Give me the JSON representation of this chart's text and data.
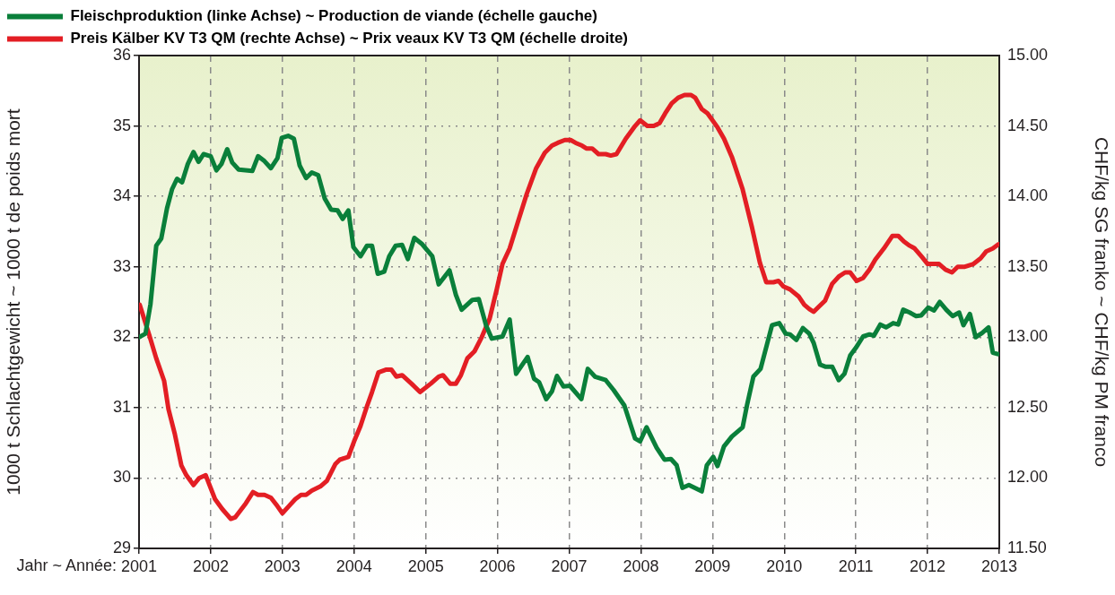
{
  "chart_data": {
    "type": "line",
    "xlabel": "Jahr ~ Année:",
    "ylabel": "1000 t Schlachtgewicht ~ 1000 t de poids mort",
    "y2label": "CHF/kg SG franko ~ CHF/kg PM franco",
    "xlim": [
      2001,
      2013
    ],
    "xticks": [
      2001,
      2002,
      2003,
      2004,
      2005,
      2006,
      2007,
      2008,
      2009,
      2010,
      2011,
      2012,
      2013
    ],
    "ylim": [
      29,
      36
    ],
    "yticks": [
      29,
      30,
      31,
      32,
      33,
      34,
      35,
      36
    ],
    "y2lim": [
      11.5,
      15
    ],
    "y2ticks": [
      {
        "value": 11.5,
        "label": "11.50"
      },
      {
        "value": 12,
        "label": "12.00"
      },
      {
        "value": 12.5,
        "label": "12.50"
      },
      {
        "value": 13,
        "label": "13.00"
      },
      {
        "value": 13.5,
        "label": "13.50"
      },
      {
        "value": 14,
        "label": "14.00"
      },
      {
        "value": 14.5,
        "label": "14.50"
      },
      {
        "value": 15,
        "label": "15.00"
      }
    ],
    "grid": true,
    "legend": "top left",
    "series": [
      {
        "name": "Fleischproduktion (linke Achse) ~ Production de viande (échelle gauche)",
        "color": "#0a7f3a",
        "axis": "y",
        "x": [
          2001.0,
          2001.09,
          2001.16,
          2001.24,
          2001.31,
          2001.39,
          2001.46,
          2001.53,
          2001.6,
          2001.68,
          2001.76,
          2001.83,
          2001.9,
          2002.0,
          2002.08,
          2002.15,
          2002.23,
          2002.3,
          2002.39,
          2002.58,
          2002.66,
          2002.75,
          2002.84,
          2002.93,
          2002.99,
          2003.08,
          2003.16,
          2003.24,
          2003.33,
          2003.41,
          2003.5,
          2003.59,
          2003.68,
          2003.77,
          2003.84,
          2003.92,
          2003.99,
          2004.09,
          2004.18,
          2004.25,
          2004.33,
          2004.42,
          2004.49,
          2004.58,
          2004.67,
          2004.75,
          2004.84,
          2004.95,
          2005.09,
          2005.18,
          2005.33,
          2005.42,
          2005.5,
          2005.65,
          2005.74,
          2005.84,
          2005.92,
          2006.07,
          2006.17,
          2006.26,
          2006.42,
          2006.51,
          2006.58,
          2006.68,
          2006.76,
          2006.83,
          2006.92,
          2007.01,
          2007.17,
          2007.26,
          2007.36,
          2007.51,
          2007.62,
          2007.77,
          2007.92,
          2007.99,
          2008.08,
          2008.22,
          2008.33,
          2008.42,
          2008.5,
          2008.58,
          2008.67,
          2008.85,
          2008.92,
          2009.01,
          2009.07,
          2009.16,
          2009.27,
          2009.42,
          2009.48,
          2009.57,
          2009.67,
          2009.83,
          2009.93,
          2010.02,
          2010.08,
          2010.17,
          2010.26,
          2010.35,
          2010.41,
          2010.5,
          2010.58,
          2010.67,
          2010.76,
          2010.84,
          2010.92,
          2011.0,
          2011.1,
          2011.19,
          2011.25,
          2011.34,
          2011.42,
          2011.52,
          2011.59,
          2011.66,
          2011.75,
          2011.84,
          2011.91,
          2012.01,
          2012.09,
          2012.17,
          2012.26,
          2012.35,
          2012.44,
          2012.5,
          2012.59,
          2012.67,
          2012.76,
          2012.85,
          2012.91,
          2012.98
        ],
        "values": [
          32.0,
          32.05,
          32.47,
          33.3,
          33.4,
          33.83,
          34.1,
          34.25,
          34.2,
          34.46,
          34.63,
          34.49,
          34.6,
          34.57,
          34.37,
          34.46,
          34.67,
          34.48,
          34.38,
          34.36,
          34.57,
          34.5,
          34.4,
          34.54,
          34.83,
          34.86,
          34.82,
          34.44,
          34.26,
          34.34,
          34.3,
          33.97,
          33.81,
          33.8,
          33.68,
          33.8,
          33.28,
          33.15,
          33.3,
          33.3,
          32.9,
          32.93,
          33.15,
          33.3,
          33.31,
          33.11,
          33.41,
          33.32,
          33.15,
          32.75,
          32.95,
          32.6,
          32.39,
          32.53,
          32.54,
          32.17,
          31.98,
          32.01,
          32.25,
          31.48,
          31.72,
          31.41,
          31.36,
          31.12,
          31.23,
          31.45,
          31.3,
          31.31,
          31.12,
          31.55,
          31.44,
          31.39,
          31.25,
          31.03,
          30.56,
          30.52,
          30.72,
          30.43,
          30.26,
          30.27,
          30.18,
          29.86,
          29.9,
          29.81,
          30.18,
          30.3,
          30.17,
          30.45,
          30.59,
          30.72,
          31.03,
          31.44,
          31.55,
          32.17,
          32.2,
          32.05,
          32.04,
          31.96,
          32.13,
          32.05,
          31.92,
          31.61,
          31.58,
          31.58,
          31.39,
          31.48,
          31.74,
          31.85,
          32.01,
          32.04,
          32.02,
          32.18,
          32.14,
          32.2,
          32.18,
          32.39,
          32.35,
          32.3,
          32.31,
          32.42,
          32.38,
          32.5,
          32.39,
          32.3,
          32.35,
          32.17,
          32.33,
          32.0,
          32.06,
          32.14,
          31.78,
          31.76
        ]
      },
      {
        "name": "Preis Kälber KV T3 QM (rechte Achse) ~ Prix veaux KV T3 QM (échelle droite)",
        "color": "#e31e24",
        "axis": "y2",
        "x": [
          2001.01,
          2001.14,
          2001.24,
          2001.35,
          2001.41,
          2001.5,
          2001.59,
          2001.66,
          2001.76,
          2001.84,
          2001.93,
          2002.06,
          2002.16,
          2002.28,
          2002.34,
          2002.49,
          2002.59,
          2002.66,
          2002.75,
          2002.84,
          2002.93,
          2003.0,
          2003.09,
          2003.18,
          2003.26,
          2003.33,
          2003.41,
          2003.53,
          2003.62,
          2003.74,
          2003.8,
          2003.92,
          2004.0,
          2004.09,
          2004.18,
          2004.25,
          2004.34,
          2004.45,
          2004.52,
          2004.59,
          2004.67,
          2004.8,
          2004.92,
          2005.07,
          2005.18,
          2005.24,
          2005.34,
          2005.42,
          2005.49,
          2005.58,
          2005.68,
          2005.78,
          2005.89,
          2005.99,
          2006.07,
          2006.17,
          2006.28,
          2006.41,
          2006.54,
          2006.66,
          2006.76,
          2006.84,
          2006.94,
          2007.02,
          2007.09,
          2007.18,
          2007.24,
          2007.32,
          2007.41,
          2007.51,
          2007.58,
          2007.66,
          2007.79,
          2007.92,
          2007.99,
          2008.09,
          2008.18,
          2008.26,
          2008.34,
          2008.43,
          2008.52,
          2008.61,
          2008.7,
          2008.76,
          2008.85,
          2008.93,
          2009.07,
          2009.16,
          2009.27,
          2009.42,
          2009.55,
          2009.66,
          2009.75,
          2009.85,
          2009.92,
          2009.99,
          2010.08,
          2010.2,
          2010.28,
          2010.35,
          2010.41,
          2010.47,
          2010.57,
          2010.67,
          2010.76,
          2010.85,
          2010.92,
          2011.01,
          2011.1,
          2011.19,
          2011.27,
          2011.39,
          2011.51,
          2011.59,
          2011.67,
          2011.75,
          2011.82,
          2011.92,
          2012.0,
          2012.07,
          2012.16,
          2012.25,
          2012.34,
          2012.42,
          2012.52,
          2012.64,
          2012.74,
          2012.82,
          2012.91,
          2012.99
        ],
        "values": [
          13.23,
          13.02,
          12.85,
          12.69,
          12.49,
          12.31,
          12.09,
          12.02,
          11.95,
          12.0,
          12.02,
          11.85,
          11.78,
          11.71,
          11.72,
          11.82,
          11.9,
          11.88,
          11.88,
          11.86,
          11.8,
          11.75,
          11.8,
          11.85,
          11.88,
          11.88,
          11.91,
          11.94,
          11.98,
          12.1,
          12.13,
          12.15,
          12.26,
          12.37,
          12.51,
          12.61,
          12.75,
          12.77,
          12.77,
          12.72,
          12.73,
          12.67,
          12.61,
          12.67,
          12.72,
          12.73,
          12.67,
          12.67,
          12.73,
          12.85,
          12.9,
          13.0,
          13.13,
          13.34,
          13.52,
          13.63,
          13.81,
          14.02,
          14.2,
          14.31,
          14.36,
          14.38,
          14.4,
          14.4,
          14.38,
          14.36,
          14.34,
          14.34,
          14.3,
          14.3,
          14.29,
          14.3,
          14.41,
          14.5,
          14.54,
          14.5,
          14.5,
          14.52,
          14.59,
          14.66,
          14.7,
          14.72,
          14.72,
          14.7,
          14.62,
          14.59,
          14.49,
          14.41,
          14.28,
          14.05,
          13.78,
          13.53,
          13.39,
          13.39,
          13.4,
          13.36,
          13.34,
          13.29,
          13.23,
          13.2,
          13.18,
          13.21,
          13.26,
          13.38,
          13.43,
          13.46,
          13.46,
          13.4,
          13.42,
          13.48,
          13.55,
          13.63,
          13.72,
          13.72,
          13.68,
          13.65,
          13.63,
          13.57,
          13.52,
          13.52,
          13.52,
          13.48,
          13.46,
          13.5,
          13.5,
          13.52,
          13.56,
          13.61,
          13.63,
          13.66
        ]
      }
    ]
  }
}
